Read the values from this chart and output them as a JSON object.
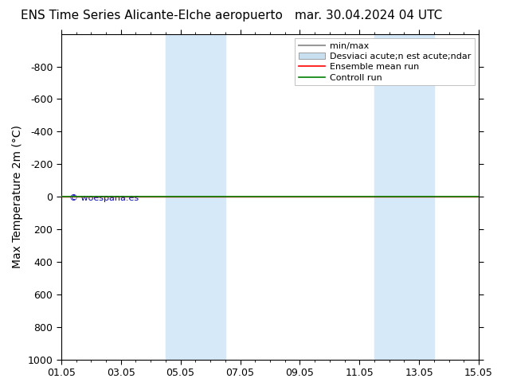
{
  "title_left": "ENS Time Series Alicante-Elche aeropuerto",
  "title_right": "mar. 30.04.2024 04 UTC",
  "ylabel": "Max Temperature 2m (°C)",
  "ylim_top": -1000,
  "ylim_bottom": 1000,
  "yticks": [
    -800,
    -600,
    -400,
    -200,
    0,
    200,
    400,
    600,
    800,
    1000
  ],
  "xtick_labels": [
    "01.05",
    "03.05",
    "05.05",
    "07.05",
    "09.05",
    "11.05",
    "13.05",
    "15.05"
  ],
  "xtick_positions": [
    0,
    2,
    4,
    6,
    8,
    10,
    12,
    14
  ],
  "xlim": [
    0,
    14
  ],
  "shaded_bands": [
    {
      "xmin": 3.5,
      "xmax": 5.5
    },
    {
      "xmin": 10.5,
      "xmax": 12.5
    }
  ],
  "line_y": 0,
  "line_color_green": "#008000",
  "line_color_red": "#ff0000",
  "band_color": "#d6e9f8",
  "watermark": "© woespana.es",
  "watermark_color": "#0000cc",
  "legend_entries": [
    {
      "label": "min/max",
      "type": "line",
      "color": "#999999",
      "linewidth": 1.5
    },
    {
      "label": "Desviaci acute;n est acute;ndar",
      "type": "rect",
      "color": "#c8dff0"
    },
    {
      "label": "Ensemble mean run",
      "type": "line",
      "color": "#ff0000",
      "linewidth": 1.2
    },
    {
      "label": "Controll run",
      "type": "line",
      "color": "#008000",
      "linewidth": 1.2
    }
  ],
  "background_color": "#ffffff",
  "title_fontsize": 11,
  "axis_label_fontsize": 10,
  "tick_fontsize": 9,
  "legend_fontsize": 8
}
